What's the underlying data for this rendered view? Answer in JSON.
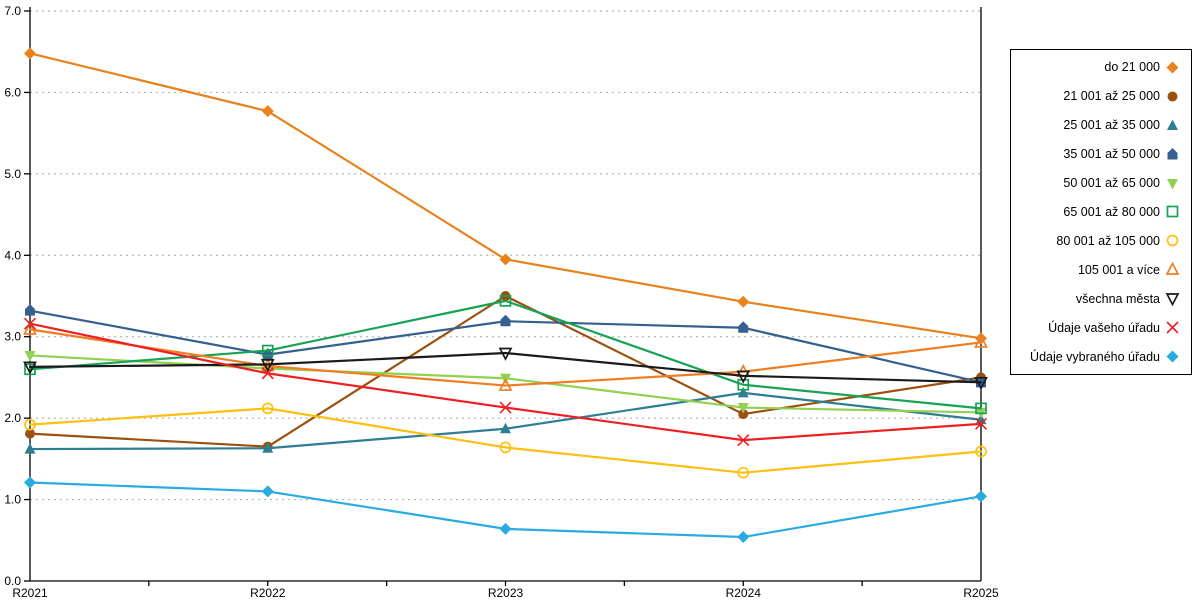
{
  "chart_data": {
    "type": "line",
    "title": "",
    "xlabel": "",
    "ylabel": "",
    "categories": [
      "R2021",
      "R2022",
      "R2023",
      "R2024",
      "R2025"
    ],
    "ylim": [
      0.0,
      7.0
    ],
    "y_tick_labels": [
      "0.0",
      "1.0",
      "2.0",
      "3.0",
      "4.0",
      "5.0",
      "6.0",
      "7.0"
    ],
    "grid": "horizontal dotted gridlines at integer values",
    "gridline_color": "#b5b5b5",
    "axis_color": "#000000",
    "legend_position": "right outside, bordered box",
    "legend_border_color": "#000000",
    "series": [
      {
        "name": "do 21 000",
        "color": "#e8821f",
        "marker": "diamond",
        "style": "filled",
        "values": [
          6.48,
          5.77,
          3.95,
          3.43,
          2.98
        ]
      },
      {
        "name": "21 001 až 25 000",
        "color": "#9c500f",
        "marker": "circle",
        "style": "filled",
        "values": [
          1.81,
          1.65,
          3.5,
          2.05,
          2.5
        ]
      },
      {
        "name": "25 001 až 35 000",
        "color": "#2e7e93",
        "marker": "triangle-up",
        "style": "filled",
        "values": [
          1.62,
          1.63,
          1.87,
          2.31,
          1.98
        ]
      },
      {
        "name": "35 001 až 50 000",
        "color": "#35608f",
        "marker": "pentagon",
        "style": "filled",
        "values": [
          3.32,
          2.78,
          3.19,
          3.11,
          2.44
        ]
      },
      {
        "name": "50 001 až 65 000",
        "color": "#92d050",
        "marker": "triangle-down",
        "style": "filled",
        "values": [
          2.77,
          2.61,
          2.49,
          2.13,
          2.07
        ]
      },
      {
        "name": "65 001 až 80 000",
        "color": "#17a254",
        "marker": "square",
        "style": "open",
        "values": [
          2.6,
          2.83,
          3.44,
          2.41,
          2.12
        ]
      },
      {
        "name": "80 001 až 105 000",
        "color": "#fdc010",
        "marker": "circle",
        "style": "open",
        "values": [
          1.92,
          2.12,
          1.64,
          1.33,
          1.59
        ]
      },
      {
        "name": "105 001 a více",
        "color": "#f07d22",
        "marker": "triangle-up",
        "style": "open",
        "values": [
          3.09,
          2.64,
          2.4,
          2.57,
          2.93
        ]
      },
      {
        "name": "všechna města",
        "color": "#1a1a1a",
        "marker": "triangle-down",
        "style": "open",
        "values": [
          2.63,
          2.66,
          2.8,
          2.52,
          2.44
        ]
      },
      {
        "name": "Údaje vašeho úřadu",
        "color": "#ec2024",
        "marker": "x",
        "style": "line",
        "values": [
          3.16,
          2.55,
          2.13,
          1.73,
          1.93
        ]
      },
      {
        "name": "Údaje vybraného úřadu",
        "color": "#29abe2",
        "marker": "diamond",
        "style": "filled",
        "values": [
          1.21,
          1.1,
          0.64,
          0.54,
          1.04
        ]
      }
    ]
  }
}
